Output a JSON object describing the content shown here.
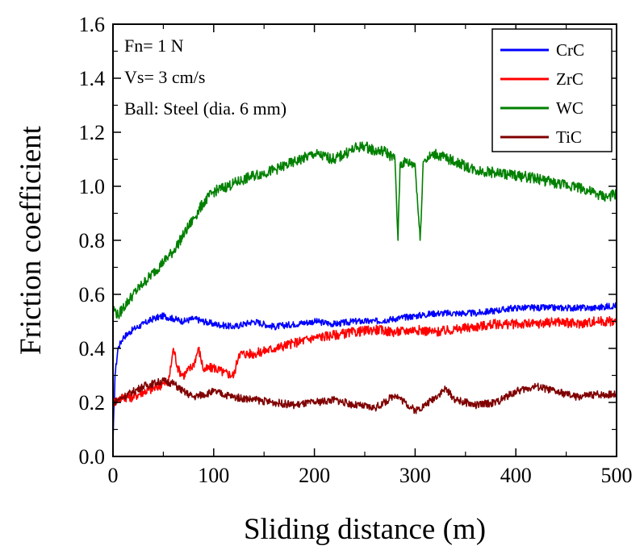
{
  "chart_data": {
    "type": "line",
    "xlabel": "Sliding distance (m)",
    "ylabel": "Friction coefficient",
    "xlim": [
      0,
      500
    ],
    "ylim": [
      0,
      1.6
    ],
    "xticks": [
      0,
      100,
      200,
      300,
      400,
      500
    ],
    "xtick_labels": [
      "0",
      "100",
      "200",
      "300",
      "400",
      "500"
    ],
    "yticks": [
      0.0,
      0.2,
      0.4,
      0.6,
      0.8,
      1.0,
      1.2,
      1.4,
      1.6
    ],
    "ytick_labels": [
      "0.0",
      "0.2",
      "0.4",
      "0.6",
      "0.8",
      "1.0",
      "1.2",
      "1.4",
      "1.6"
    ],
    "grid": false,
    "legend_position": "top-right",
    "annotations": [
      "Fn= 1 N",
      "Vs= 3 cm/s",
      "Ball: Steel (dia. 6 mm)"
    ],
    "series": [
      {
        "name": "CrC",
        "color": "#0000ff",
        "x": [
          0,
          2,
          5,
          10,
          20,
          30,
          40,
          50,
          60,
          70,
          80,
          100,
          120,
          140,
          160,
          180,
          200,
          220,
          240,
          260,
          280,
          300,
          320,
          340,
          360,
          380,
          400,
          420,
          440,
          460,
          480,
          500
        ],
        "y": [
          0.05,
          0.3,
          0.4,
          0.44,
          0.47,
          0.49,
          0.51,
          0.52,
          0.51,
          0.5,
          0.51,
          0.49,
          0.48,
          0.5,
          0.48,
          0.49,
          0.5,
          0.49,
          0.5,
          0.5,
          0.51,
          0.52,
          0.53,
          0.53,
          0.53,
          0.54,
          0.55,
          0.55,
          0.55,
          0.55,
          0.55,
          0.56
        ]
      },
      {
        "name": "ZrC",
        "color": "#ff0000",
        "x": [
          0,
          5,
          10,
          20,
          30,
          40,
          50,
          55,
          60,
          65,
          70,
          80,
          85,
          90,
          100,
          110,
          120,
          125,
          140,
          160,
          180,
          200,
          220,
          240,
          260,
          280,
          300,
          320,
          340,
          360,
          380,
          400,
          420,
          440,
          460,
          480,
          500
        ],
        "y": [
          0.2,
          0.21,
          0.22,
          0.22,
          0.24,
          0.25,
          0.27,
          0.27,
          0.4,
          0.32,
          0.3,
          0.34,
          0.4,
          0.32,
          0.33,
          0.31,
          0.3,
          0.38,
          0.38,
          0.4,
          0.42,
          0.44,
          0.45,
          0.46,
          0.47,
          0.46,
          0.47,
          0.46,
          0.47,
          0.48,
          0.49,
          0.49,
          0.49,
          0.5,
          0.49,
          0.5,
          0.5
        ]
      },
      {
        "name": "WC",
        "color": "#008000",
        "x": [
          0,
          2,
          5,
          10,
          20,
          30,
          40,
          50,
          60,
          70,
          80,
          90,
          100,
          120,
          140,
          160,
          180,
          200,
          220,
          240,
          250,
          260,
          270,
          280,
          283,
          285,
          290,
          300,
          305,
          308,
          310,
          320,
          340,
          360,
          380,
          400,
          420,
          440,
          460,
          480,
          490,
          500
        ],
        "y": [
          0.55,
          0.54,
          0.52,
          0.55,
          0.6,
          0.64,
          0.68,
          0.72,
          0.76,
          0.82,
          0.88,
          0.94,
          0.98,
          1.01,
          1.04,
          1.06,
          1.09,
          1.12,
          1.1,
          1.14,
          1.15,
          1.13,
          1.13,
          1.1,
          0.8,
          1.08,
          1.09,
          1.08,
          0.8,
          1.09,
          1.1,
          1.12,
          1.09,
          1.06,
          1.05,
          1.04,
          1.03,
          1.01,
          1.0,
          0.97,
          0.96,
          0.97
        ]
      },
      {
        "name": "TiC",
        "color": "#800000",
        "x": [
          0,
          5,
          10,
          20,
          30,
          40,
          50,
          60,
          70,
          80,
          100,
          120,
          140,
          160,
          180,
          200,
          220,
          240,
          260,
          270,
          280,
          290,
          300,
          310,
          320,
          330,
          340,
          360,
          380,
          400,
          420,
          440,
          460,
          480,
          500
        ],
        "y": [
          0.2,
          0.21,
          0.22,
          0.24,
          0.26,
          0.27,
          0.28,
          0.27,
          0.24,
          0.22,
          0.24,
          0.22,
          0.21,
          0.2,
          0.19,
          0.2,
          0.21,
          0.19,
          0.18,
          0.2,
          0.23,
          0.2,
          0.17,
          0.19,
          0.22,
          0.25,
          0.21,
          0.19,
          0.2,
          0.24,
          0.26,
          0.24,
          0.22,
          0.23,
          0.23
        ]
      }
    ]
  }
}
